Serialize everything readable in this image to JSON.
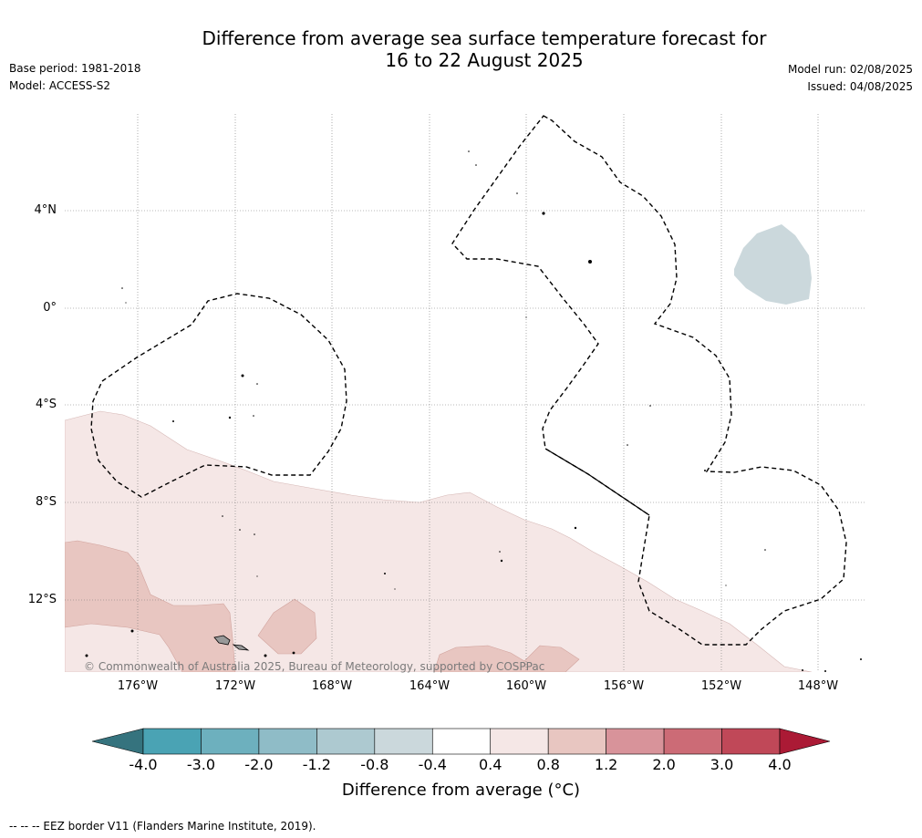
{
  "title_line1": "Difference from average sea surface temperature forecast for",
  "title_line2": "16 to 22 August 2025",
  "base_period": "Base period: 1981-2018",
  "model": "Model: ACCESS-S2",
  "model_run": "Model run: 02/08/2025",
  "issued": "Issued: 04/08/2025",
  "lat_labels": [
    "4°N",
    "0°",
    "4°S",
    "8°S",
    "12°S"
  ],
  "lon_labels": [
    "176°W",
    "172°W",
    "168°W",
    "164°W",
    "160°W",
    "156°W",
    "152°W",
    "148°W"
  ],
  "copyright": "© Commonwealth of Australia 2025, Bureau of Meteorology, supported by COSPPac",
  "colorbar": {
    "ticks": [
      "-4.0",
      "-3.0",
      "-2.0",
      "-1.2",
      "-0.8",
      "-0.4",
      "0.4",
      "0.8",
      "1.2",
      "2.0",
      "3.0",
      "4.0"
    ],
    "colors": [
      "#4aa3b4",
      "#6db0be",
      "#8fbcc7",
      "#adc9d0",
      "#cbd8dc",
      "#ffffff",
      "#f5e7e6",
      "#e8c6c1",
      "#d8939a",
      "#cc6b76",
      "#c04858"
    ],
    "extend_low_color": "#35737e",
    "extend_high_color": "#ab1a35",
    "label": "Difference from average (°C)"
  },
  "footnote": "--  --  -- EEZ border V11 (Flanders Marine Institute, 2019)."
}
